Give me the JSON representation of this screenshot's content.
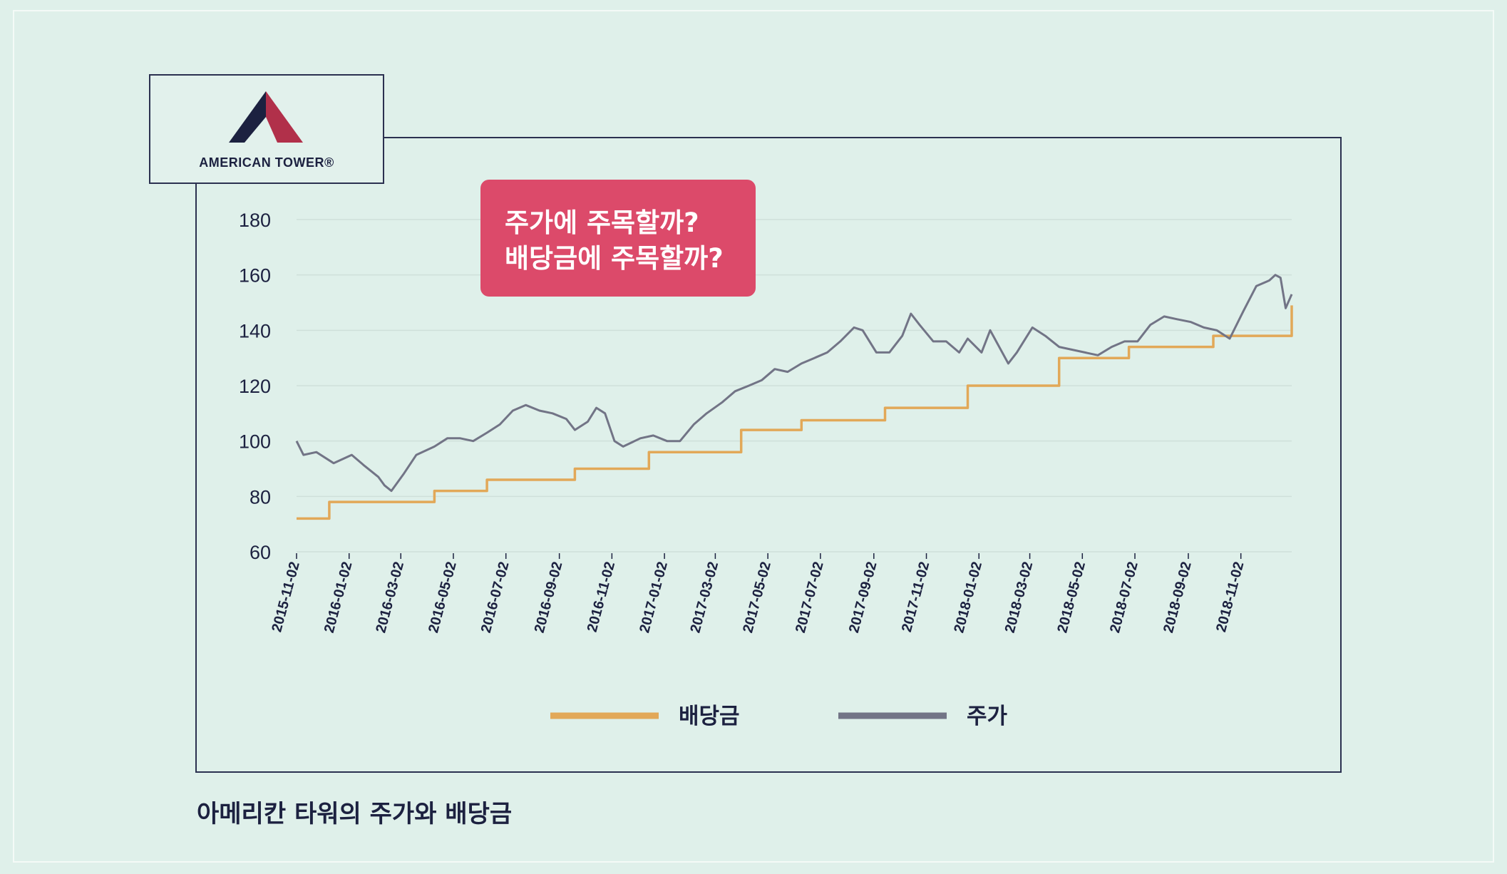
{
  "brand": {
    "name": "AMERICAN TOWER®",
    "colors": {
      "dark": "#1c2140",
      "red": "#b1304a"
    }
  },
  "callout": {
    "line1": "주가에 주목할까?",
    "line2": "배당금에 주목할까?",
    "color": "#dc4a6a"
  },
  "caption": "아메리칸 타워의 주가와 배당금",
  "chart_data": {
    "type": "line",
    "title": "",
    "xlabel": "",
    "ylabel": "",
    "ylim": [
      60,
      180
    ],
    "yticks": [
      60,
      80,
      100,
      120,
      140,
      160,
      180
    ],
    "grid": true,
    "legend_position": "bottom",
    "x_range": [
      "2015-11-02",
      "2018-12-31"
    ],
    "x_ticks": [
      "2015-11-02",
      "2016-01-02",
      "2016-03-02",
      "2016-05-02",
      "2016-07-02",
      "2016-09-02",
      "2016-11-02",
      "2017-01-02",
      "2017-03-02",
      "2017-05-02",
      "2017-07-02",
      "2017-09-02",
      "2017-11-02",
      "2018-01-02",
      "2018-03-02",
      "2018-05-02",
      "2018-07-02",
      "2018-09-02",
      "2018-11-02"
    ],
    "series": [
      {
        "name": "배당금",
        "color": "#e2a858",
        "step": true,
        "points": [
          [
            "2015-11-02",
            72
          ],
          [
            "2015-12-10",
            78
          ],
          [
            "2016-04-10",
            82
          ],
          [
            "2016-06-10",
            86
          ],
          [
            "2016-09-20",
            90
          ],
          [
            "2016-12-15",
            96
          ],
          [
            "2017-04-01",
            104
          ],
          [
            "2017-06-10",
            107.5
          ],
          [
            "2017-09-15",
            112
          ],
          [
            "2017-12-20",
            120
          ],
          [
            "2018-04-05",
            130
          ],
          [
            "2018-06-25",
            134
          ],
          [
            "2018-10-01",
            138
          ],
          [
            "2018-12-31",
            149
          ]
        ]
      },
      {
        "name": "주가",
        "color": "#727486",
        "points": [
          [
            "2015-11-02",
            100
          ],
          [
            "2015-11-10",
            95
          ],
          [
            "2015-11-25",
            96
          ],
          [
            "2015-12-15",
            92
          ],
          [
            "2016-01-05",
            95
          ],
          [
            "2016-01-20",
            91
          ],
          [
            "2016-02-05",
            87
          ],
          [
            "2016-02-12",
            84
          ],
          [
            "2016-02-20",
            82
          ],
          [
            "2016-03-05",
            88
          ],
          [
            "2016-03-20",
            95
          ],
          [
            "2016-04-10",
            98
          ],
          [
            "2016-04-25",
            101
          ],
          [
            "2016-05-10",
            101
          ],
          [
            "2016-05-25",
            100
          ],
          [
            "2016-06-10",
            103
          ],
          [
            "2016-06-25",
            106
          ],
          [
            "2016-07-10",
            111
          ],
          [
            "2016-07-25",
            113
          ],
          [
            "2016-08-10",
            111
          ],
          [
            "2016-08-25",
            110
          ],
          [
            "2016-09-10",
            108
          ],
          [
            "2016-09-20",
            104
          ],
          [
            "2016-10-05",
            107
          ],
          [
            "2016-10-15",
            112
          ],
          [
            "2016-10-25",
            110
          ],
          [
            "2016-11-05",
            100
          ],
          [
            "2016-11-15",
            98
          ],
          [
            "2016-12-05",
            101
          ],
          [
            "2016-12-20",
            102
          ],
          [
            "2017-01-05",
            100
          ],
          [
            "2017-01-20",
            100
          ],
          [
            "2017-02-05",
            106
          ],
          [
            "2017-02-20",
            110
          ],
          [
            "2017-03-10",
            114
          ],
          [
            "2017-03-25",
            118
          ],
          [
            "2017-04-10",
            120
          ],
          [
            "2017-04-25",
            122
          ],
          [
            "2017-05-10",
            126
          ],
          [
            "2017-05-25",
            125
          ],
          [
            "2017-06-10",
            128
          ],
          [
            "2017-06-25",
            130
          ],
          [
            "2017-07-10",
            132
          ],
          [
            "2017-07-25",
            136
          ],
          [
            "2017-08-10",
            141
          ],
          [
            "2017-08-20",
            140
          ],
          [
            "2017-09-05",
            132
          ],
          [
            "2017-09-20",
            132
          ],
          [
            "2017-10-05",
            138
          ],
          [
            "2017-10-15",
            146
          ],
          [
            "2017-10-25",
            142
          ],
          [
            "2017-11-10",
            136
          ],
          [
            "2017-11-25",
            136
          ],
          [
            "2017-12-10",
            132
          ],
          [
            "2017-12-20",
            137
          ],
          [
            "2018-01-05",
            132
          ],
          [
            "2018-01-15",
            140
          ],
          [
            "2018-02-05",
            128
          ],
          [
            "2018-02-15",
            132
          ],
          [
            "2018-03-05",
            141
          ],
          [
            "2018-03-20",
            138
          ],
          [
            "2018-04-05",
            134
          ],
          [
            "2018-04-20",
            133
          ],
          [
            "2018-05-05",
            132
          ],
          [
            "2018-05-20",
            131
          ],
          [
            "2018-06-05",
            134
          ],
          [
            "2018-06-20",
            136
          ],
          [
            "2018-07-05",
            136
          ],
          [
            "2018-07-20",
            142
          ],
          [
            "2018-08-05",
            145
          ],
          [
            "2018-08-20",
            144
          ],
          [
            "2018-09-05",
            143
          ],
          [
            "2018-09-20",
            141
          ],
          [
            "2018-10-05",
            140
          ],
          [
            "2018-10-20",
            137
          ],
          [
            "2018-11-05",
            147
          ],
          [
            "2018-11-20",
            156
          ],
          [
            "2018-12-05",
            158
          ],
          [
            "2018-12-12",
            160
          ],
          [
            "2018-12-18",
            159
          ],
          [
            "2018-12-24",
            148
          ],
          [
            "2018-12-31",
            153
          ]
        ]
      }
    ]
  }
}
